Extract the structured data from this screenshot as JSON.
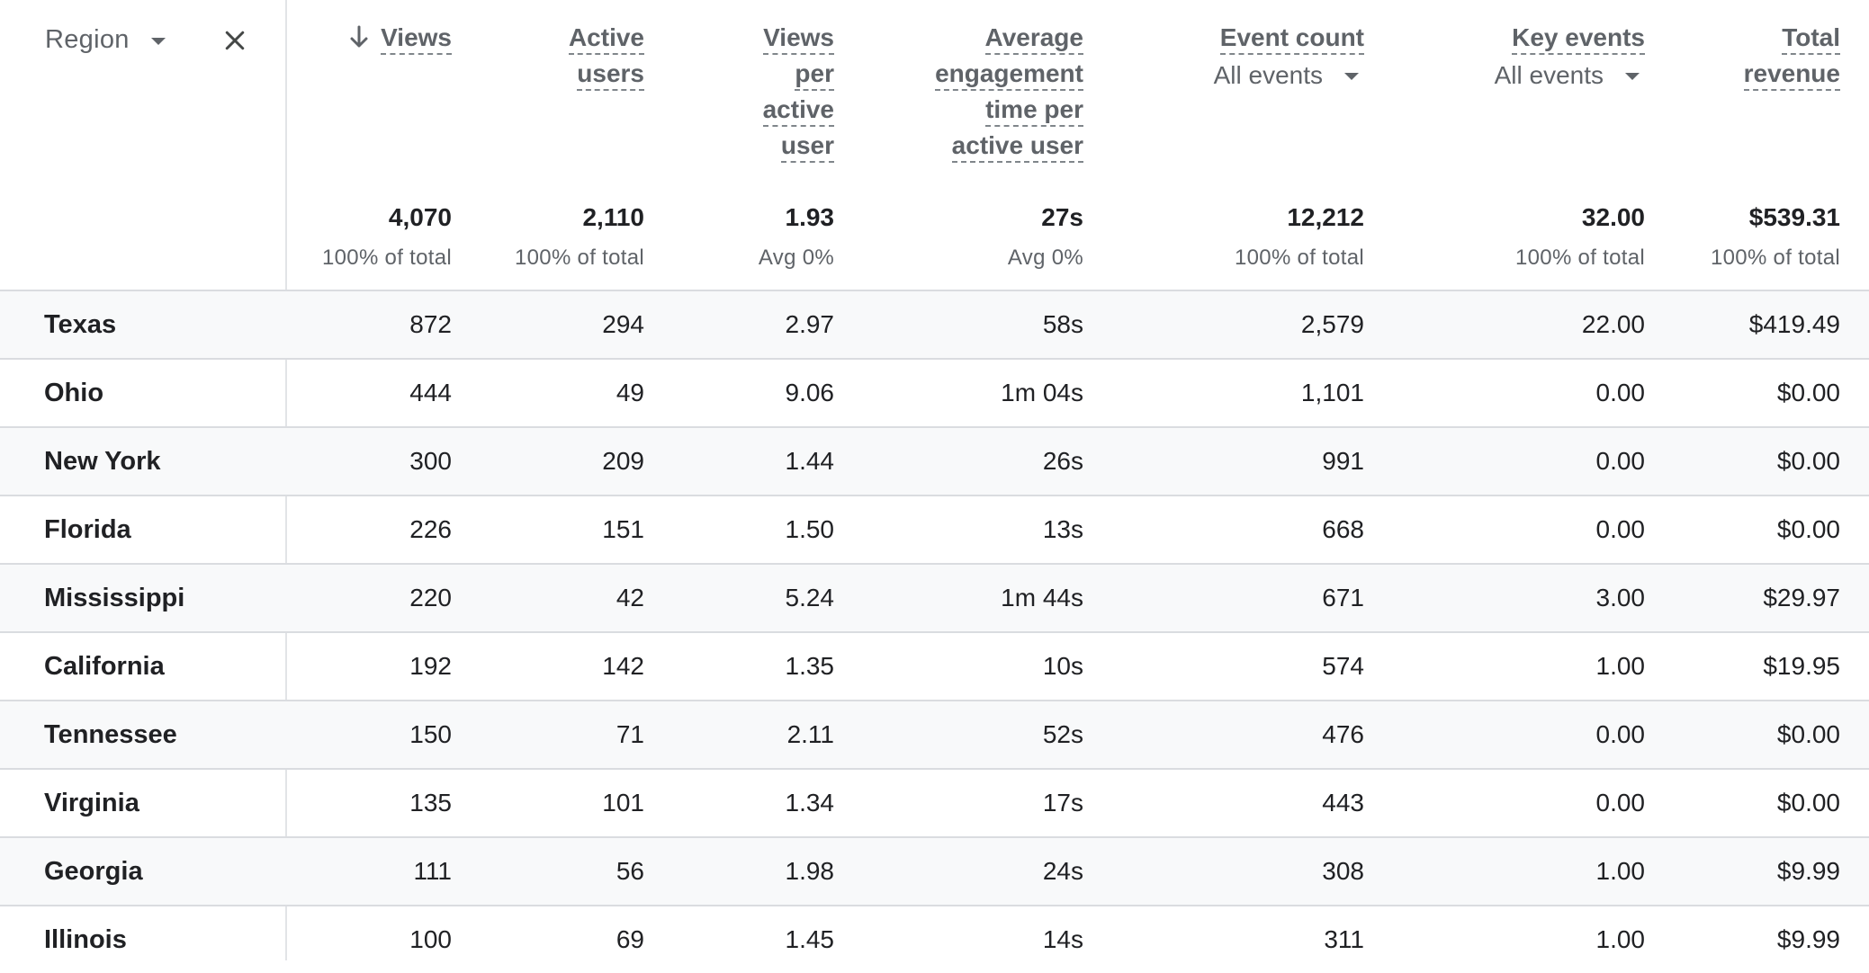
{
  "dimension": {
    "label": "Region"
  },
  "headers": [
    {
      "lines": [
        "Views"
      ],
      "sorted": true
    },
    {
      "lines": [
        "Active",
        "users"
      ]
    },
    {
      "lines": [
        "Views",
        "per",
        "active",
        "user"
      ]
    },
    {
      "lines": [
        "Average",
        "engagement",
        "time per",
        "active user"
      ]
    },
    {
      "lines": [
        "Event count"
      ],
      "selector": "All events"
    },
    {
      "lines": [
        "Key events"
      ],
      "selector": "All events"
    },
    {
      "lines": [
        "Total",
        "revenue"
      ]
    }
  ],
  "totals": [
    {
      "value": "4,070",
      "sub": "100% of total"
    },
    {
      "value": "2,110",
      "sub": "100% of total"
    },
    {
      "value": "1.93",
      "sub": "Avg 0%"
    },
    {
      "value": "27s",
      "sub": "Avg 0%"
    },
    {
      "value": "12,212",
      "sub": "100% of total"
    },
    {
      "value": "32.00",
      "sub": "100% of total"
    },
    {
      "value": "$539.31",
      "sub": "100% of total"
    }
  ],
  "rows": [
    {
      "region": "Texas",
      "values": [
        "872",
        "294",
        "2.97",
        "58s",
        "2,579",
        "22.00",
        "$419.49"
      ]
    },
    {
      "region": "Ohio",
      "values": [
        "444",
        "49",
        "9.06",
        "1m 04s",
        "1,101",
        "0.00",
        "$0.00"
      ]
    },
    {
      "region": "New York",
      "values": [
        "300",
        "209",
        "1.44",
        "26s",
        "991",
        "0.00",
        "$0.00"
      ]
    },
    {
      "region": "Florida",
      "values": [
        "226",
        "151",
        "1.50",
        "13s",
        "668",
        "0.00",
        "$0.00"
      ]
    },
    {
      "region": "Mississippi",
      "values": [
        "220",
        "42",
        "5.24",
        "1m 44s",
        "671",
        "3.00",
        "$29.97"
      ]
    },
    {
      "region": "California",
      "values": [
        "192",
        "142",
        "1.35",
        "10s",
        "574",
        "1.00",
        "$19.95"
      ]
    },
    {
      "region": "Tennessee",
      "values": [
        "150",
        "71",
        "2.11",
        "52s",
        "476",
        "0.00",
        "$0.00"
      ]
    },
    {
      "region": "Virginia",
      "values": [
        "135",
        "101",
        "1.34",
        "17s",
        "443",
        "0.00",
        "$0.00"
      ]
    },
    {
      "region": "Georgia",
      "values": [
        "111",
        "56",
        "1.98",
        "24s",
        "308",
        "1.00",
        "$9.99"
      ]
    },
    {
      "region": "Illinois",
      "values": [
        "100",
        "69",
        "1.45",
        "14s",
        "311",
        "1.00",
        "$9.99"
      ]
    }
  ],
  "icons": {
    "sort": "arrow-down-icon",
    "remove_dimension": "close-icon",
    "dropdown": "caret-down-icon"
  },
  "colors": {
    "header_text": "#5f6368",
    "body_text": "#202124",
    "divider": "#dadce0",
    "row_alt_bg": "#f8f9fa"
  }
}
